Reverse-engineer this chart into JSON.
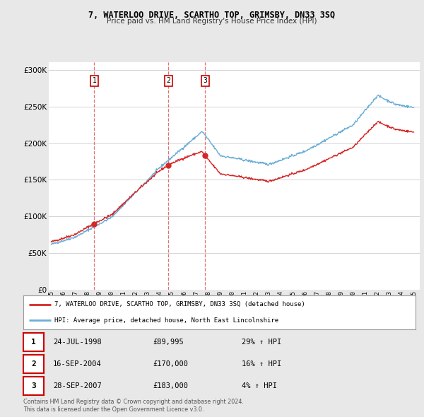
{
  "title": "7, WATERLOO DRIVE, SCARTHO TOP, GRIMSBY, DN33 3SQ",
  "subtitle": "Price paid vs. HM Land Registry's House Price Index (HPI)",
  "legend_line1": "7, WATERLOO DRIVE, SCARTHO TOP, GRIMSBY, DN33 3SQ (detached house)",
  "legend_line2": "HPI: Average price, detached house, North East Lincolnshire",
  "footer1": "Contains HM Land Registry data © Crown copyright and database right 2024.",
  "footer2": "This data is licensed under the Open Government Licence v3.0.",
  "transactions": [
    {
      "num": 1,
      "date": "24-JUL-1998",
      "price": "£89,995",
      "pct": "29% ↑ HPI",
      "year": 1998.56
    },
    {
      "num": 2,
      "date": "16-SEP-2004",
      "price": "£170,000",
      "pct": "16% ↑ HPI",
      "year": 2004.71
    },
    {
      "num": 3,
      "date": "28-SEP-2007",
      "price": "£183,000",
      "pct": "4% ↑ HPI",
      "year": 2007.74
    }
  ],
  "sale_prices": [
    89995,
    170000,
    183000
  ],
  "sale_years": [
    1998.56,
    2004.71,
    2007.74
  ],
  "hpi_color": "#6baed6",
  "price_color": "#d62728",
  "vline_color": "#e06060",
  "background_color": "#e8e8e8",
  "plot_bg_color": "#ffffff",
  "ylim": [
    0,
    310000
  ],
  "yticks": [
    0,
    50000,
    100000,
    150000,
    200000,
    250000,
    300000
  ],
  "xlim_start": 1994.8,
  "xlim_end": 2025.5
}
